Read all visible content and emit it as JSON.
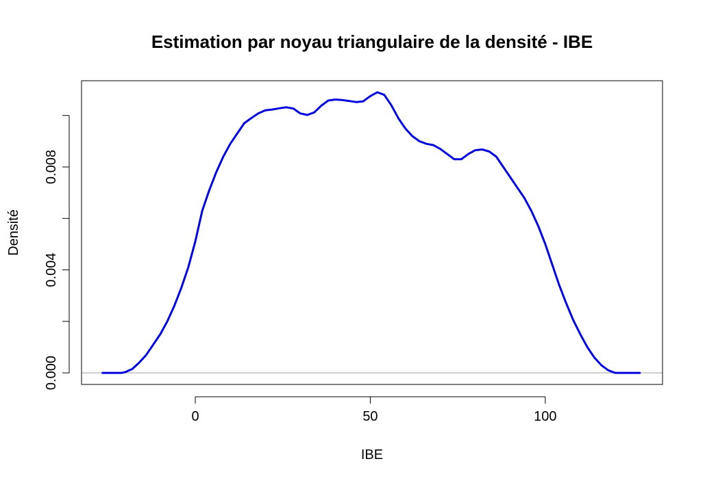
{
  "chart_data": {
    "type": "line",
    "title": "Estimation par noyau triangulaire de la densité - IBE",
    "xlabel": "IBE",
    "ylabel": "Densité",
    "xlim": [
      -32.5,
      133.5
    ],
    "ylim": [
      -0.00045,
      0.01135
    ],
    "x_ticks": [
      0,
      50,
      100
    ],
    "x_tick_labels": [
      "0",
      "50",
      "100"
    ],
    "y_ticks": [
      0.0,
      0.002,
      0.004,
      0.006,
      0.008,
      0.01
    ],
    "y_tick_labels": [
      "0.000",
      "",
      "0.004",
      "",
      "0.008",
      ""
    ],
    "baseline": 0,
    "grid": false,
    "colors": {
      "line": "#0000DD",
      "baseline": "#BEBEBE",
      "axes": "#000000"
    },
    "series": [
      {
        "x": [
          -26.5,
          -21,
          -20,
          -18,
          -16,
          -14,
          -12,
          -10,
          -8,
          -6,
          -4,
          -2,
          0,
          1,
          2,
          4,
          6,
          8,
          10,
          12,
          14,
          16,
          18,
          20,
          22,
          24,
          26,
          28,
          30,
          32,
          34,
          36,
          38,
          40,
          42,
          44,
          46,
          48,
          50,
          52,
          54,
          56,
          58,
          60,
          62,
          64,
          66,
          68,
          70,
          72,
          74,
          76,
          78,
          80,
          82,
          84,
          86,
          88,
          90,
          92,
          94,
          96,
          98,
          100,
          102,
          104,
          106,
          108,
          110,
          112,
          114,
          116,
          118,
          120,
          122,
          127
        ],
        "y": [
          0.0,
          0.0,
          3e-05,
          0.00015,
          0.0004,
          0.0007,
          0.0011,
          0.0015,
          0.002,
          0.0026,
          0.0033,
          0.0041,
          0.0051,
          0.0057,
          0.0063,
          0.0071,
          0.0078,
          0.0084,
          0.0089,
          0.0093,
          0.0097,
          0.0099,
          0.01008,
          0.0102,
          0.01023,
          0.01028,
          0.01032,
          0.01027,
          0.01008,
          0.01002,
          0.01012,
          0.01038,
          0.01058,
          0.01062,
          0.0106,
          0.01056,
          0.01052,
          0.01055,
          0.01075,
          0.0109,
          0.0108,
          0.0104,
          0.0099,
          0.0095,
          0.0092,
          0.009,
          0.0089,
          0.00885,
          0.0087,
          0.0085,
          0.0083,
          0.0083,
          0.0085,
          0.00865,
          0.00868,
          0.0086,
          0.0084,
          0.008,
          0.0076,
          0.0072,
          0.0068,
          0.0063,
          0.0057,
          0.005,
          0.0042,
          0.0034,
          0.0027,
          0.00205,
          0.0015,
          0.001,
          0.0006,
          0.0003,
          0.0001,
          0.0,
          0.0,
          0.0
        ]
      }
    ]
  }
}
